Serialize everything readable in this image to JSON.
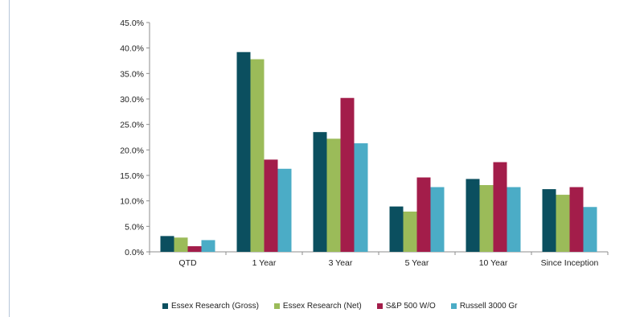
{
  "chart_data": {
    "type": "bar",
    "categories": [
      "QTD",
      "1 Year",
      "3 Year",
      "5 Year",
      "10 Year",
      "Since Inception"
    ],
    "series": [
      {
        "name": "Essex Research (Gross)",
        "color": "#0b4f5f",
        "values": [
          3.1,
          39.2,
          23.5,
          8.9,
          14.3,
          12.3
        ]
      },
      {
        "name": "Essex Research (Net)",
        "color": "#9bbb59",
        "values": [
          2.8,
          37.8,
          22.2,
          7.9,
          13.1,
          11.2
        ]
      },
      {
        "name": "S&P 500 W/O",
        "color": "#a31d4a",
        "values": [
          1.1,
          18.1,
          30.2,
          14.6,
          17.6,
          12.7
        ]
      },
      {
        "name": "Russell 3000 Gr",
        "color": "#4bacc6",
        "values": [
          2.3,
          16.3,
          21.3,
          12.7,
          12.7,
          8.8
        ]
      }
    ],
    "yticks": [
      "0.0%",
      "5.0%",
      "10.0%",
      "15.0%",
      "20.0%",
      "25.0%",
      "30.0%",
      "35.0%",
      "40.0%",
      "45.0%"
    ],
    "ylim": [
      0,
      45
    ],
    "grid": false,
    "legend_position": "bottom"
  }
}
